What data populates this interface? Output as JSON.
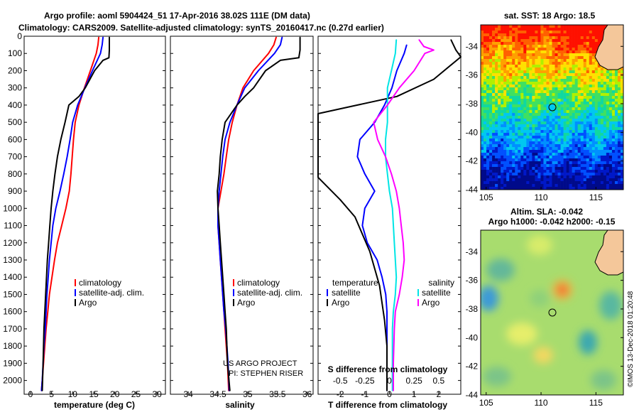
{
  "title": {
    "line1": "Argo profile: aoml 5904424_51 17-Apr-2016 38.02S 111E (DM data)",
    "line2": "Climatology: CARS2009. Satellite-adjusted climatology: synTS_20160417.nc (0.27d earlier)"
  },
  "colors": {
    "climatology": "#ff0000",
    "satellite": "#0000ff",
    "argo": "#000000",
    "satellite_salinity": "#00e5e5",
    "argo_salinity": "#ff00ff"
  },
  "credit": {
    "project": "US ARGO PROJECT",
    "pi": "PI: STEPHEN RISER"
  },
  "watermark": "©IMOS 13-Dec-2018 01:20:48",
  "chart_data": [
    {
      "type": "line",
      "panel": "temperature",
      "xlabel": "temperature (deg C)",
      "ylabel": "",
      "xlim": [
        -1.5,
        32
      ],
      "ylim": [
        2080,
        0
      ],
      "xticks": [
        "0",
        "5",
        "10",
        "15",
        "20",
        "25",
        "30"
      ],
      "yticks": [
        "0",
        "100",
        "200",
        "300",
        "400",
        "500",
        "600",
        "700",
        "800",
        "900",
        "1000",
        "1100",
        "1200",
        "1300",
        "1400",
        "1500",
        "1600",
        "1700",
        "1800",
        "1900",
        "2000"
      ],
      "legend": {
        "position": "bottom-right",
        "entries": [
          "climatology",
          "satellite-adj. clim.",
          "Argo"
        ]
      },
      "series": [
        {
          "name": "climatology",
          "color": "#ff0000",
          "x": [
            16.2,
            16.0,
            15.6,
            14.2,
            12.8,
            11.5,
            10.6,
            10.2,
            9.9,
            9.6,
            9.2,
            8.4,
            7.4,
            6.4,
            5.7,
            5.1,
            4.5,
            4.1,
            3.7,
            3.4,
            3.1,
            2.8,
            2.6
          ],
          "y": [
            5,
            50,
            100,
            200,
            300,
            400,
            500,
            600,
            700,
            800,
            900,
            1000,
            1100,
            1200,
            1300,
            1400,
            1500,
            1600,
            1700,
            1800,
            1900,
            2000,
            2060
          ]
        },
        {
          "name": "satellite-adj. clim.",
          "color": "#0000ff",
          "x": [
            17.2,
            17.0,
            16.6,
            14.7,
            12.9,
            11.2,
            10.0,
            9.4,
            8.7,
            7.9,
            7.0,
            6.0,
            5.3,
            4.9,
            4.5,
            4.2,
            3.9,
            3.7,
            3.5,
            3.2,
            3.0,
            2.8,
            2.6
          ],
          "y": [
            5,
            50,
            100,
            200,
            300,
            400,
            500,
            600,
            700,
            800,
            900,
            1000,
            1100,
            1200,
            1300,
            1400,
            1500,
            1600,
            1700,
            1800,
            1900,
            2000,
            2060
          ]
        },
        {
          "name": "Argo",
          "color": "#000000",
          "x": [
            18.7,
            18.7,
            18.6,
            17.2,
            15.2,
            13.0,
            11.5,
            9.1,
            8.2,
            7.2,
            6.4,
            5.8,
            5.3,
            4.9,
            4.6,
            4.3,
            4.0,
            3.8,
            3.6,
            3.4,
            3.2,
            3.0,
            2.8
          ],
          "y": [
            5,
            80,
            125,
            140,
            200,
            300,
            350,
            400,
            500,
            600,
            700,
            800,
            900,
            1000,
            1100,
            1200,
            1300,
            1400,
            1500,
            1600,
            1700,
            1900,
            2060
          ]
        }
      ]
    },
    {
      "type": "line",
      "panel": "salinity",
      "xlabel": "salinity",
      "ylabel": "",
      "xlim": [
        33.7,
        36.1
      ],
      "ylim": [
        2080,
        0
      ],
      "xticks": [
        "34",
        "34.5",
        "35",
        "35.5",
        "36"
      ],
      "legend": {
        "position": "bottom-right",
        "entries": [
          "climatology",
          "satellite-adj. clim.",
          "Argo"
        ]
      },
      "series": [
        {
          "name": "climatology",
          "color": "#ff0000",
          "x": [
            35.48,
            35.44,
            35.35,
            35.1,
            34.92,
            34.82,
            34.74,
            34.68,
            34.64,
            34.6,
            34.55,
            34.5,
            34.5,
            34.52,
            34.54,
            34.56,
            34.58,
            34.6,
            34.62,
            34.64,
            34.66,
            34.68
          ],
          "y": [
            5,
            50,
            100,
            200,
            300,
            400,
            500,
            600,
            700,
            800,
            900,
            1000,
            1100,
            1200,
            1300,
            1400,
            1500,
            1600,
            1700,
            1800,
            1900,
            2060
          ]
        },
        {
          "name": "satellite-adj. clim.",
          "color": "#0000ff",
          "x": [
            35.58,
            35.55,
            35.45,
            35.18,
            34.95,
            34.82,
            34.7,
            34.62,
            34.58,
            34.55,
            34.52,
            34.5,
            34.5,
            34.52,
            34.54,
            34.56,
            34.58,
            34.6,
            34.63,
            34.65,
            34.67,
            34.69
          ],
          "y": [
            5,
            50,
            100,
            200,
            300,
            400,
            500,
            600,
            700,
            800,
            900,
            1000,
            1100,
            1200,
            1300,
            1400,
            1500,
            1600,
            1700,
            1800,
            1900,
            2060
          ]
        },
        {
          "name": "Argo",
          "color": "#000000",
          "x": [
            35.88,
            35.88,
            35.86,
            35.55,
            35.3,
            35.1,
            34.95,
            34.82,
            34.62,
            34.57,
            34.54,
            34.52,
            34.49,
            34.5,
            34.52,
            34.54,
            34.56,
            34.58,
            34.6,
            34.62,
            34.64,
            34.66,
            34.7
          ],
          "y": [
            5,
            80,
            125,
            140,
            200,
            300,
            350,
            400,
            500,
            600,
            700,
            800,
            900,
            1000,
            1100,
            1200,
            1300,
            1400,
            1500,
            1600,
            1700,
            1900,
            2060
          ]
        }
      ]
    },
    {
      "type": "line",
      "panel": "difference",
      "xlabel": "T difference from climatology",
      "xlabel2": "S difference from climatology",
      "xlim": [
        -2.9,
        2.9
      ],
      "ylim": [
        2080,
        0
      ],
      "xticks": [
        "-2",
        "-1",
        "0",
        "1",
        "2"
      ],
      "xticks2": [
        "-0.5",
        "-0.25",
        "0",
        "0.25",
        "0.5"
      ],
      "legend": {
        "position": "bottom",
        "temperature_title": "temperature",
        "salinity_title": "salinity",
        "temperature_entries": [
          "satellite",
          "Argo"
        ],
        "salinity_entries": [
          "satellite",
          "Argo"
        ]
      },
      "series": [
        {
          "name": "satellite",
          "variable": "temperature",
          "color": "#0000ff",
          "x": [
            0.7,
            0.6,
            0.3,
            0.1,
            -0.2,
            -0.6,
            -1.2,
            -1.3,
            -1.0,
            -0.6,
            -1.0,
            -1.1,
            -0.9,
            -0.5,
            -0.3,
            -0.15,
            -0.1,
            -0.1,
            -0.1,
            -0.1,
            -0.1
          ],
          "y": [
            50,
            100,
            200,
            300,
            400,
            500,
            600,
            700,
            800,
            900,
            1000,
            1100,
            1200,
            1300,
            1400,
            1500,
            1600,
            1700,
            1800,
            1900,
            2060
          ]
        },
        {
          "name": "Argo",
          "variable": "temperature",
          "color": "#000000",
          "x": [
            2.5,
            2.7,
            2.9,
            1.8,
            0.3,
            -1.3,
            -2.9,
            -2.9,
            -2.0,
            -1.4,
            -1.1,
            -0.8,
            -0.6,
            -0.4,
            -0.3,
            -0.2,
            -0.1,
            -0.1
          ],
          "y": [
            20,
            80,
            120,
            250,
            350,
            400,
            450,
            820,
            950,
            1050,
            1150,
            1250,
            1350,
            1450,
            1550,
            1650,
            1800,
            2060
          ]
        },
        {
          "name": "satellite",
          "variable": "salinity",
          "color": "#00e5e5",
          "x": [
            0.07,
            0.06,
            0.02,
            -0.02,
            -0.02,
            -0.02,
            -0.04,
            -0.04,
            -0.02,
            0.0,
            0.03,
            0.05,
            0.07,
            0.06,
            0.04,
            0.03,
            0.03,
            0.03,
            0.03,
            0.03
          ],
          "y": [
            20,
            100,
            200,
            300,
            400,
            500,
            600,
            700,
            800,
            900,
            1000,
            1200,
            1400,
            1500,
            1600,
            1700,
            1800,
            1900,
            2000,
            2060
          ]
        },
        {
          "name": "Argo",
          "variable": "salinity",
          "color": "#ff00ff",
          "x": [
            0.3,
            0.35,
            0.45,
            0.36,
            0.25,
            0.1,
            -0.02,
            -0.16,
            -0.12,
            -0.04,
            0.02,
            0.07,
            0.1,
            0.12,
            0.14,
            0.15,
            0.13,
            0.1,
            0.06,
            0.05,
            0.04,
            0.04
          ],
          "y": [
            20,
            60,
            80,
            100,
            200,
            300,
            400,
            500,
            600,
            700,
            800,
            900,
            1000,
            1100,
            1200,
            1300,
            1400,
            1500,
            1600,
            1700,
            1900,
            2060
          ]
        }
      ]
    },
    {
      "type": "heatmap",
      "panel": "sst_map",
      "title": "sat. SST: 18 Argo: 18.5",
      "xlim": [
        104.5,
        117.5
      ],
      "ylim": [
        -44,
        -32.5
      ],
      "xticks": [
        "105",
        "110",
        "115"
      ],
      "yticks": [
        "-34",
        "-36",
        "-38",
        "-40",
        "-42",
        "-44"
      ],
      "float_position": {
        "lon": 111.0,
        "lat": -38.02
      }
    },
    {
      "type": "heatmap",
      "panel": "sla_map",
      "title": "Altim. SLA: -0.042",
      "subtitle": "Argo h1000: -0.042 h2000: -0.15",
      "xlim": [
        104.5,
        117.5
      ],
      "ylim": [
        -44,
        -32.5
      ],
      "xticks": [
        "105",
        "110",
        "115"
      ],
      "yticks": [
        "-34",
        "-36",
        "-38",
        "-40",
        "-42",
        "-44"
      ],
      "float_position": {
        "lon": 111.0,
        "lat": -38.02
      }
    }
  ]
}
